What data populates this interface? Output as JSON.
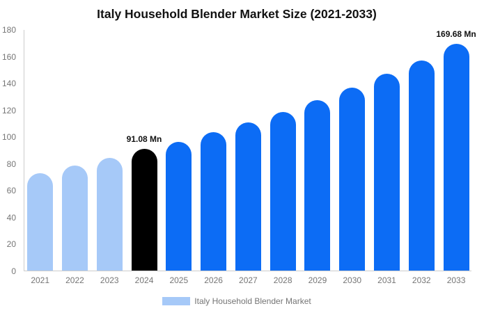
{
  "page": {
    "background": "#ffffff"
  },
  "chart_data": {
    "type": "bar",
    "title": "Italy Household Blender Market Size (2021-2033)",
    "categories": [
      "2021",
      "2022",
      "2023",
      "2024",
      "2025",
      "2026",
      "2027",
      "2028",
      "2029",
      "2030",
      "2031",
      "2032",
      "2033"
    ],
    "values": [
      73.2,
      78.9,
      84.2,
      91.08,
      96.4,
      103.5,
      110.7,
      118.9,
      127.6,
      136.8,
      147.1,
      157.3,
      169.68
    ],
    "unit": "Mn",
    "point_labels": [
      "",
      "",
      "",
      "91.08 Mn",
      "",
      "",
      "",
      "",
      "",
      "",
      "",
      "",
      "169.68 Mn"
    ],
    "bar_roles": [
      "historical",
      "historical",
      "historical",
      "current",
      "forecast",
      "forecast",
      "forecast",
      "forecast",
      "forecast",
      "forecast",
      "forecast",
      "forecast",
      "forecast"
    ],
    "ylim": [
      0,
      180
    ],
    "yticks": [
      0,
      20,
      40,
      60,
      80,
      100,
      120,
      140,
      160,
      180
    ],
    "grid": false,
    "legend_position": "bottom",
    "series": [
      {
        "name": "Italy Household Blender Market"
      }
    ]
  },
  "legend": {
    "label": "Italy Household Blender Market"
  },
  "colors": {
    "historical_bar": "#a6c9f8",
    "current_bar": "#000000",
    "forecast_bar": "#0c6cf5",
    "axis_line": "#cccccc",
    "axis_text": "#757575",
    "title_text": "#111111",
    "value_label_text": "#111111",
    "legend_text": "#757575",
    "legend_swatch": "#a6c9f8"
  }
}
